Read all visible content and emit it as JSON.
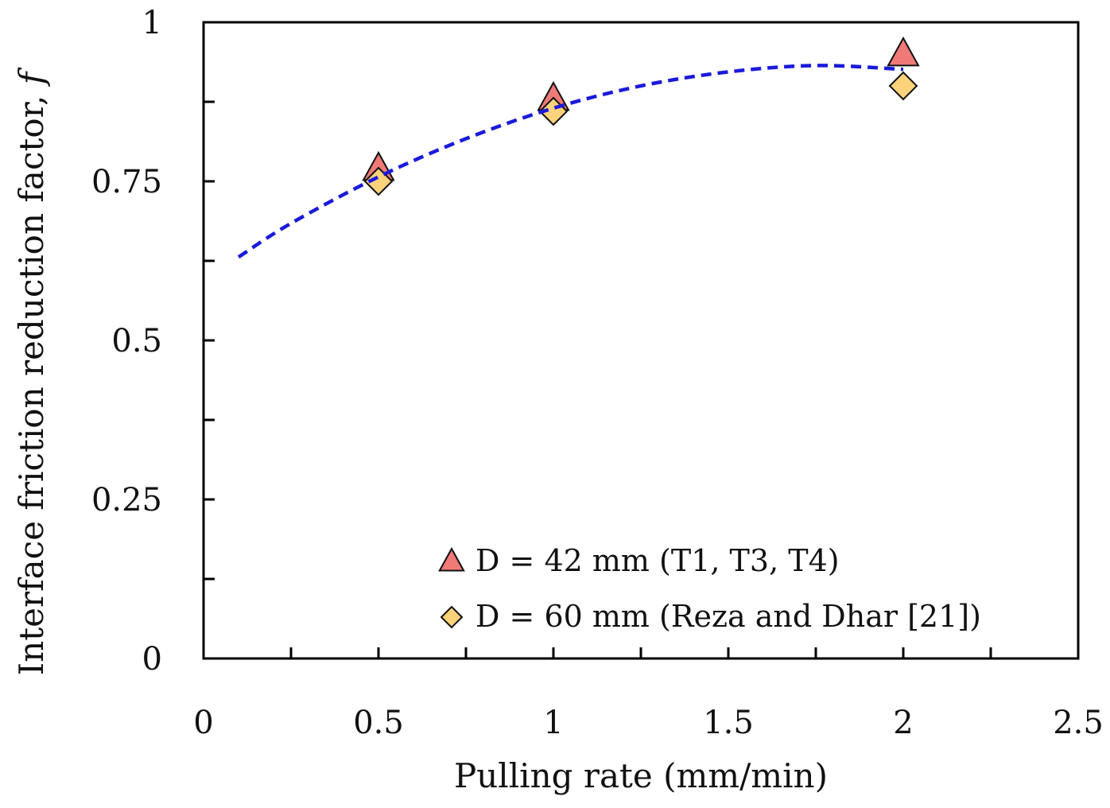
{
  "chart_data": {
    "type": "scatter",
    "title": "",
    "xlabel": "Pulling rate (mm/min)",
    "ylabel": "Interface friction reduction factor,",
    "ylabel_symbol": "f",
    "xlim": [
      0,
      2.5
    ],
    "ylim": [
      0,
      1
    ],
    "x_ticks": [
      0,
      0.5,
      1,
      1.5,
      2,
      2.5
    ],
    "x_tick_labels": [
      "0",
      "0.5",
      "1",
      "1.5",
      "2",
      "2.5"
    ],
    "x_minor_ticks": [
      0.25,
      0.75,
      1.25,
      1.75,
      2.25
    ],
    "y_ticks": [
      0,
      0.25,
      0.5,
      0.75,
      1
    ],
    "y_tick_labels": [
      "0",
      "0.25",
      "0.5",
      "0.75",
      "1"
    ],
    "y_minor_ticks": [
      0.125,
      0.375,
      0.625,
      0.875
    ],
    "grid": false,
    "legend_position": "bottom-right",
    "series": [
      {
        "name": "D = 42 mm (T1, T3, T4)",
        "marker": "triangle",
        "color": "#f07a78",
        "points": [
          {
            "x": 0.5,
            "y": 0.77
          },
          {
            "x": 1.0,
            "y": 0.88
          },
          {
            "x": 2.0,
            "y": 0.95
          }
        ]
      },
      {
        "name": "D = 60 mm (Reza and Dhar [21])",
        "marker": "diamond",
        "color": "#fcd27a",
        "points": [
          {
            "x": 0.5,
            "y": 0.75
          },
          {
            "x": 1.0,
            "y": 0.86
          },
          {
            "x": 2.0,
            "y": 0.9
          }
        ]
      }
    ],
    "trendline": {
      "style": "dashed",
      "color": "#1a1adc",
      "x": [
        0.1,
        0.25,
        0.5,
        0.75,
        1.0,
        1.25,
        1.5,
        1.75,
        2.0
      ],
      "y": [
        0.631,
        0.684,
        0.757,
        0.817,
        0.865,
        0.9,
        0.922,
        0.932,
        0.926
      ]
    }
  }
}
